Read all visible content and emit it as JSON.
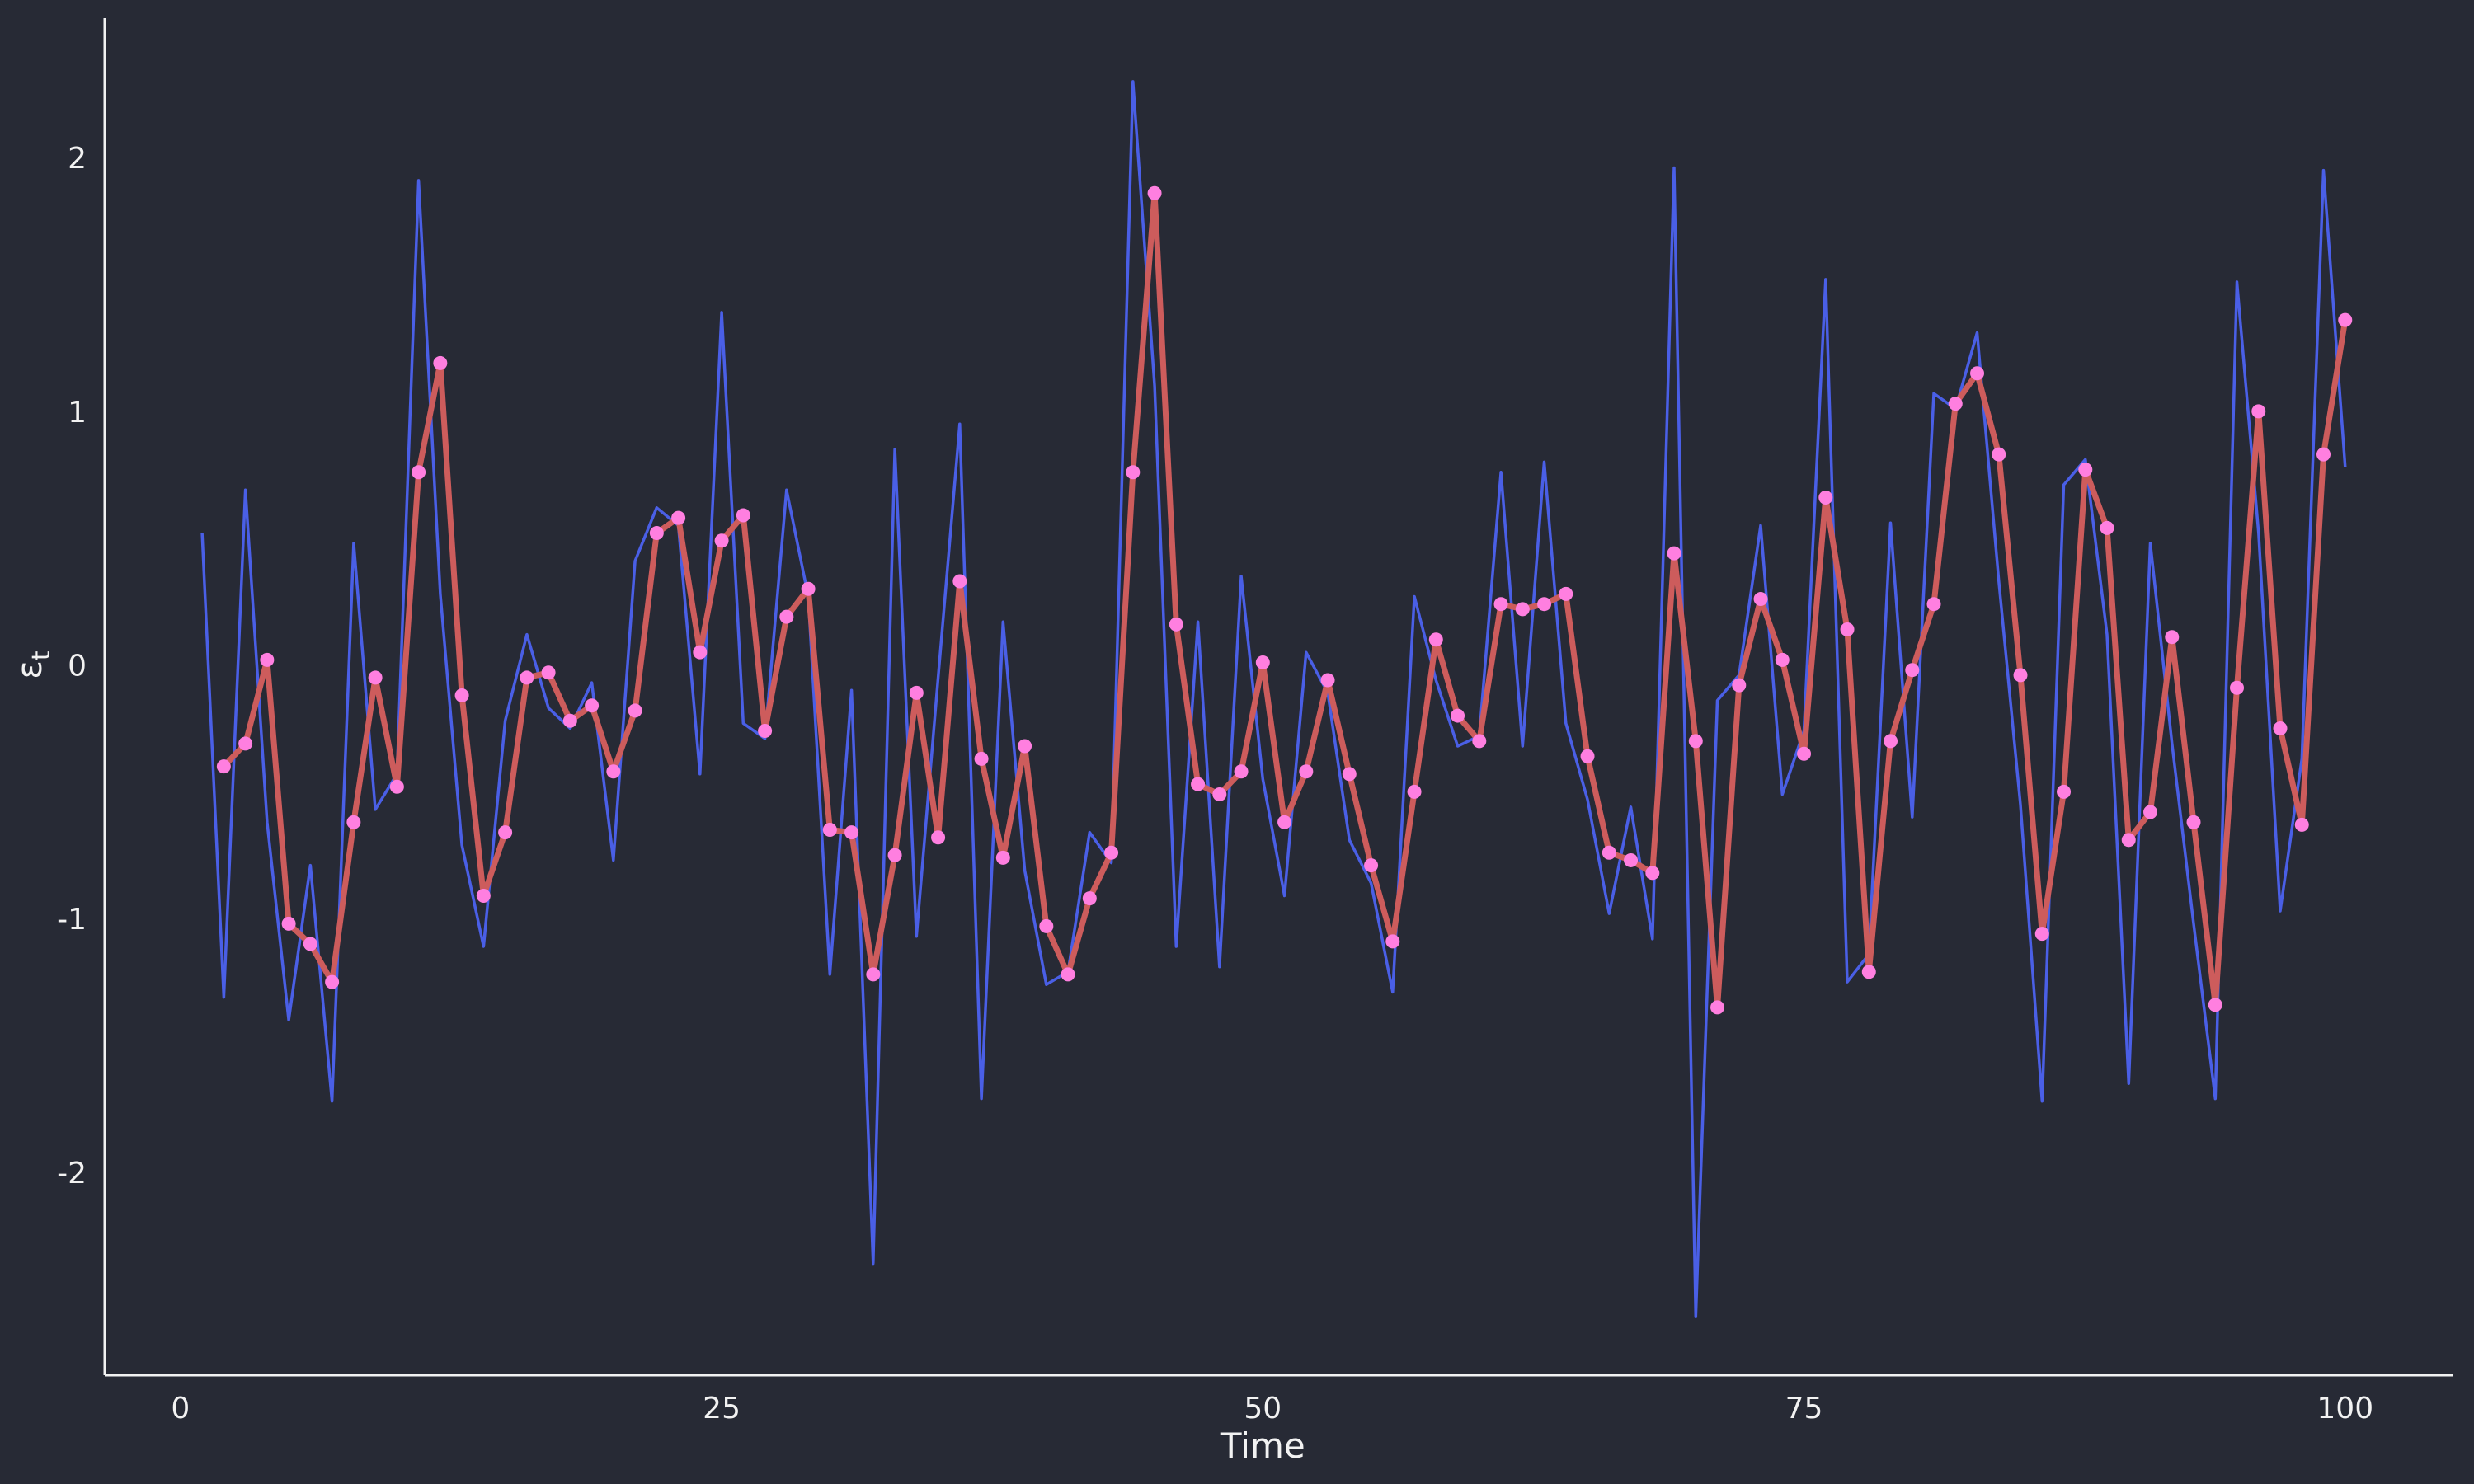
{
  "chart_data": {
    "type": "line",
    "title": "",
    "xlabel": "Time",
    "ylabel": "ε",
    "ylabel_subscript": "t",
    "xlim": [
      -3.5,
      105
    ],
    "ylim": [
      -2.8,
      2.55
    ],
    "xticks": [
      0,
      25,
      50,
      75,
      100
    ],
    "xtick_labels": [
      "0",
      "25",
      "50",
      "75",
      "100"
    ],
    "yticks": [
      -2,
      -1,
      0,
      1,
      2
    ],
    "ytick_labels": [
      "-2",
      "-1",
      "0",
      "1",
      "2"
    ],
    "grid": false,
    "background": "#272a35",
    "axis_color": "#f2f2f2",
    "series": [
      {
        "color": "#4a5fe6",
        "style": "line",
        "x": [
          1,
          2,
          3,
          4,
          5,
          6,
          7,
          8,
          9,
          10,
          11,
          12,
          13,
          14,
          15,
          16,
          17,
          18,
          19,
          20,
          21,
          22,
          23,
          24,
          25,
          26,
          27,
          28,
          29,
          30,
          31,
          32,
          33,
          34,
          35,
          36,
          37,
          38,
          39,
          40,
          41,
          42,
          43,
          44,
          45,
          46,
          47,
          48,
          49,
          50,
          51,
          52,
          53,
          54,
          55,
          56,
          57,
          58,
          59,
          60,
          61,
          62,
          63,
          64,
          65,
          66,
          67,
          68,
          69,
          70,
          71,
          72,
          73,
          74,
          75,
          76,
          77,
          78,
          79,
          80,
          81,
          82,
          83,
          84,
          85,
          86,
          87,
          88,
          89,
          90,
          91,
          92,
          93,
          94,
          95,
          96,
          97,
          98,
          99,
          100
        ],
        "values": [
          0.52,
          -1.31,
          0.69,
          -0.62,
          -1.4,
          -0.79,
          -1.72,
          0.48,
          -0.57,
          -0.43,
          1.91,
          0.28,
          -0.71,
          -1.11,
          -0.22,
          0.12,
          -0.17,
          -0.25,
          -0.07,
          -0.77,
          0.41,
          0.62,
          0.55,
          -0.43,
          1.39,
          -0.23,
          -0.29,
          0.69,
          0.27,
          -1.22,
          -0.1,
          -2.36,
          0.85,
          -1.07,
          -0.05,
          0.95,
          -1.71,
          0.17,
          -0.81,
          -1.26,
          -1.21,
          -0.66,
          -0.78,
          2.3,
          1.1,
          -1.11,
          0.17,
          -1.19,
          0.35,
          -0.45,
          -0.91,
          0.05,
          -0.11,
          -0.69,
          -0.86,
          -1.29,
          0.27,
          -0.06,
          -0.32,
          -0.28,
          0.76,
          -0.32,
          0.8,
          -0.23,
          -0.53,
          -0.98,
          -0.56,
          -1.08,
          1.96,
          -2.57,
          -0.14,
          -0.04,
          0.55,
          -0.51,
          -0.26,
          1.52,
          -1.25,
          -1.14,
          0.56,
          -0.6,
          1.07,
          1.01,
          1.31,
          0.33,
          -0.55,
          -1.72,
          0.71,
          0.81,
          0.12,
          -1.65,
          0.48,
          -0.31,
          -1.02,
          -1.71,
          1.51,
          0.52,
          -0.97,
          -0.37,
          1.95,
          0.78
        ]
      },
      {
        "color": "#cd5c5c",
        "marker_color": "#ff7fe0",
        "style": "line+markers",
        "x": [
          2,
          3,
          4,
          5,
          6,
          7,
          8,
          9,
          10,
          11,
          12,
          13,
          14,
          15,
          16,
          17,
          18,
          19,
          20,
          21,
          22,
          23,
          24,
          25,
          26,
          27,
          28,
          29,
          30,
          31,
          32,
          33,
          34,
          35,
          36,
          37,
          38,
          39,
          40,
          41,
          42,
          43,
          44,
          45,
          46,
          47,
          48,
          49,
          50,
          51,
          52,
          53,
          54,
          55,
          56,
          57,
          58,
          59,
          60,
          61,
          62,
          63,
          64,
          65,
          66,
          67,
          68,
          69,
          70,
          71,
          72,
          73,
          74,
          75,
          76,
          77,
          78,
          79,
          80,
          81,
          82,
          83,
          84,
          85,
          86,
          87,
          88,
          89,
          90,
          91,
          92,
          93,
          94,
          95,
          96,
          97,
          98,
          99,
          100
        ],
        "values": [
          -0.4,
          -0.31,
          0.02,
          -1.02,
          -1.1,
          -1.25,
          -0.62,
          -0.05,
          -0.48,
          0.76,
          1.19,
          -0.12,
          -0.91,
          -0.66,
          -0.05,
          -0.03,
          -0.22,
          -0.16,
          -0.42,
          -0.18,
          0.52,
          0.58,
          0.05,
          0.49,
          0.59,
          -0.26,
          0.19,
          0.3,
          -0.65,
          -0.66,
          -1.22,
          -0.75,
          -0.11,
          -0.68,
          0.33,
          -0.37,
          -0.76,
          -0.32,
          -1.03,
          -1.22,
          -0.92,
          -0.74,
          0.76,
          1.86,
          0.16,
          -0.47,
          -0.51,
          -0.42,
          0.01,
          -0.62,
          -0.42,
          -0.06,
          -0.43,
          -0.79,
          -1.09,
          -0.5,
          0.1,
          -0.2,
          -0.3,
          0.24,
          0.22,
          0.24,
          0.28,
          -0.36,
          -0.74,
          -0.77,
          -0.82,
          0.44,
          -0.3,
          -1.35,
          -0.08,
          0.26,
          0.02,
          -0.35,
          0.66,
          0.14,
          -1.21,
          -0.3,
          -0.02,
          0.24,
          1.03,
          1.15,
          0.83,
          -0.04,
          -1.06,
          -0.5,
          0.77,
          0.54,
          -0.69,
          -0.58,
          0.11,
          -0.62,
          -1.34,
          -0.09,
          1.0,
          -0.25,
          -0.63,
          0.83,
          1.36
        ]
      }
    ]
  }
}
